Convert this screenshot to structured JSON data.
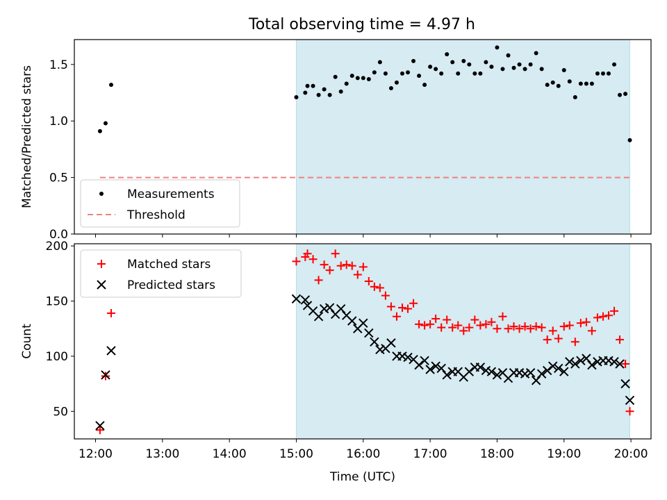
{
  "figure": {
    "title": "Total observing time = 4.97 h"
  },
  "chart_data": [
    {
      "type": "scatter",
      "ylabel": "Matched/Predicted stars",
      "ylim": [
        0,
        1.72
      ],
      "yticks": [
        0.0,
        0.5,
        1.0,
        1.5
      ],
      "ytick_labels": [
        "0.0",
        "0.5",
        "1.0",
        "1.5"
      ],
      "x_hidden": true,
      "grid": false,
      "legend": "lower left",
      "shaded_span": {
        "from": "15:00",
        "to": "19:59",
        "color": "#add8e6"
      },
      "series": [
        {
          "name": "Measurements",
          "marker": "dot",
          "color": "#000000",
          "x": [
            "12:04",
            "12:09",
            "12:14",
            "15:00",
            "15:08",
            "15:10",
            "15:15",
            "15:20",
            "15:25",
            "15:30",
            "15:35",
            "15:40",
            "15:45",
            "15:50",
            "15:55",
            "16:00",
            "16:05",
            "16:10",
            "16:15",
            "16:20",
            "16:25",
            "16:30",
            "16:35",
            "16:40",
            "16:45",
            "16:50",
            "16:55",
            "17:00",
            "17:05",
            "17:10",
            "17:15",
            "17:20",
            "17:25",
            "17:30",
            "17:35",
            "17:40",
            "17:45",
            "17:50",
            "17:55",
            "18:00",
            "18:05",
            "18:10",
            "18:15",
            "18:20",
            "18:25",
            "18:30",
            "18:35",
            "18:40",
            "18:45",
            "18:50",
            "18:55",
            "19:00",
            "19:05",
            "19:10",
            "19:15",
            "19:20",
            "19:25",
            "19:30",
            "19:35",
            "19:40",
            "19:45",
            "19:50",
            "19:55",
            "19:59"
          ],
          "y": [
            0.91,
            0.98,
            1.32,
            1.21,
            1.25,
            1.31,
            1.31,
            1.23,
            1.28,
            1.23,
            1.39,
            1.26,
            1.33,
            1.4,
            1.38,
            1.38,
            1.37,
            1.43,
            1.52,
            1.42,
            1.29,
            1.34,
            1.42,
            1.43,
            1.53,
            1.4,
            1.32,
            1.48,
            1.46,
            1.42,
            1.59,
            1.52,
            1.42,
            1.53,
            1.5,
            1.42,
            1.42,
            1.52,
            1.48,
            1.65,
            1.46,
            1.58,
            1.47,
            1.5,
            1.46,
            1.5,
            1.6,
            1.46,
            1.32,
            1.34,
            1.31,
            1.45,
            1.35,
            1.21,
            1.33,
            1.33,
            1.33,
            1.42,
            1.42,
            1.42,
            1.5,
            1.23,
            1.24,
            0.83
          ]
        },
        {
          "name": "Threshold",
          "marker": "dashed-line",
          "color": "#f08080",
          "x": [
            "12:04",
            "19:59"
          ],
          "y": [
            0.5,
            0.5
          ]
        }
      ]
    },
    {
      "type": "scatter",
      "xlabel": "Time (UTC)",
      "ylabel": "Count",
      "ylim": [
        25,
        202
      ],
      "yticks": [
        50,
        100,
        150,
        200
      ],
      "ytick_labels": [
        "50",
        "100",
        "150",
        "200"
      ],
      "xlim": [
        "11:41",
        "20:18"
      ],
      "xticks": [
        "12:00",
        "13:00",
        "14:00",
        "15:00",
        "16:00",
        "17:00",
        "18:00",
        "19:00",
        "20:00"
      ],
      "grid": false,
      "legend": "upper left",
      "shaded_span": {
        "from": "15:00",
        "to": "19:59",
        "color": "#add8e6"
      },
      "series": [
        {
          "name": "Matched stars",
          "marker": "plus",
          "color": "#ff0000",
          "x": [
            "12:04",
            "12:09",
            "12:14",
            "15:00",
            "15:08",
            "15:10",
            "15:15",
            "15:20",
            "15:25",
            "15:30",
            "15:35",
            "15:40",
            "15:45",
            "15:50",
            "15:55",
            "16:00",
            "16:05",
            "16:10",
            "16:15",
            "16:20",
            "16:25",
            "16:30",
            "16:35",
            "16:40",
            "16:45",
            "16:50",
            "16:55",
            "17:00",
            "17:05",
            "17:10",
            "17:15",
            "17:20",
            "17:25",
            "17:30",
            "17:35",
            "17:40",
            "17:45",
            "17:50",
            "17:55",
            "18:00",
            "18:05",
            "18:10",
            "18:15",
            "18:20",
            "18:25",
            "18:30",
            "18:35",
            "18:40",
            "18:45",
            "18:50",
            "18:55",
            "19:00",
            "19:05",
            "19:10",
            "19:15",
            "19:20",
            "19:25",
            "19:30",
            "19:35",
            "19:40",
            "19:45",
            "19:50",
            "19:55",
            "19:59"
          ],
          "y": [
            33,
            82,
            139,
            186,
            190,
            193,
            188,
            169,
            183,
            178,
            193,
            182,
            183,
            182,
            174,
            181,
            168,
            163,
            162,
            155,
            145,
            136,
            144,
            143,
            148,
            129,
            128,
            129,
            134,
            126,
            133,
            126,
            128,
            123,
            126,
            133,
            128,
            129,
            131,
            125,
            136,
            125,
            127,
            125,
            127,
            125,
            127,
            126,
            115,
            123,
            116,
            127,
            128,
            113,
            130,
            131,
            123,
            135,
            136,
            137,
            141,
            115,
            93,
            50
          ]
        },
        {
          "name": "Predicted stars",
          "marker": "x",
          "color": "#000000",
          "x": [
            "12:04",
            "12:09",
            "12:14",
            "15:00",
            "15:08",
            "15:10",
            "15:15",
            "15:20",
            "15:25",
            "15:30",
            "15:35",
            "15:40",
            "15:45",
            "15:50",
            "15:55",
            "16:00",
            "16:05",
            "16:10",
            "16:15",
            "16:20",
            "16:25",
            "16:30",
            "16:35",
            "16:40",
            "16:45",
            "16:50",
            "16:55",
            "17:00",
            "17:05",
            "17:10",
            "17:15",
            "17:20",
            "17:25",
            "17:30",
            "17:35",
            "17:40",
            "17:45",
            "17:50",
            "17:55",
            "18:00",
            "18:05",
            "18:10",
            "18:15",
            "18:20",
            "18:25",
            "18:30",
            "18:35",
            "18:40",
            "18:45",
            "18:50",
            "18:55",
            "19:00",
            "19:05",
            "19:10",
            "19:15",
            "19:20",
            "19:25",
            "19:30",
            "19:35",
            "19:40",
            "19:45",
            "19:50",
            "19:55",
            "19:59"
          ],
          "y": [
            37,
            83,
            105,
            152,
            151,
            146,
            141,
            136,
            143,
            144,
            138,
            143,
            137,
            132,
            125,
            130,
            121,
            113,
            106,
            107,
            112,
            100,
            100,
            99,
            97,
            92,
            96,
            88,
            91,
            89,
            83,
            86,
            86,
            81,
            86,
            90,
            90,
            87,
            86,
            83,
            85,
            80,
            85,
            85,
            84,
            85,
            78,
            84,
            87,
            91,
            89,
            86,
            95,
            93,
            96,
            98,
            92,
            95,
            96,
            96,
            95,
            93,
            75,
            60
          ]
        }
      ]
    }
  ]
}
